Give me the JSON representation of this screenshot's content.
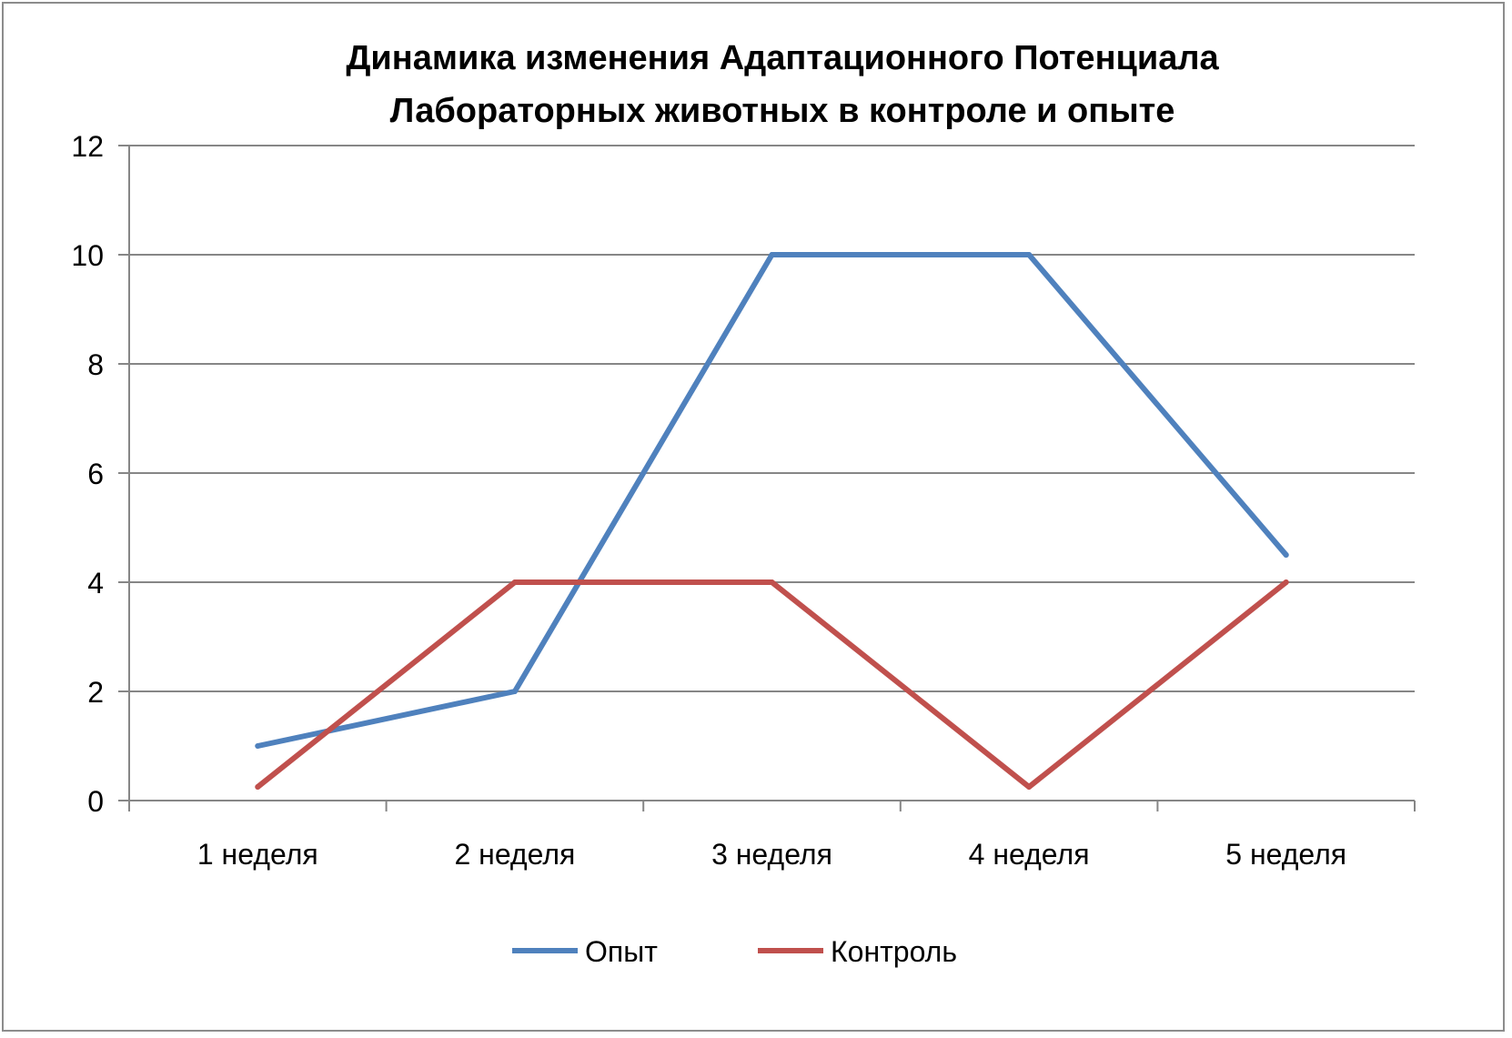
{
  "chart_data": {
    "type": "line",
    "title_lines": [
      "Динамика изменения Адаптационного Потенциала",
      "Лабораторных животных в контроле и опыте"
    ],
    "categories": [
      "1 неделя",
      "2 неделя",
      "3 неделя",
      "4 неделя",
      "5 неделя"
    ],
    "series": [
      {
        "name": "Опыт",
        "color": "#4F81BD",
        "values": [
          1,
          2,
          10,
          10,
          4.5
        ]
      },
      {
        "name": "Контроль",
        "color": "#C0504D",
        "values": [
          0.25,
          4,
          4,
          0.25,
          4
        ]
      }
    ],
    "ylim": [
      0,
      12
    ],
    "yticks": [
      "0",
      "2",
      "4",
      "6",
      "8",
      "10",
      "12"
    ],
    "grid": true,
    "legend_position": "bottom"
  }
}
